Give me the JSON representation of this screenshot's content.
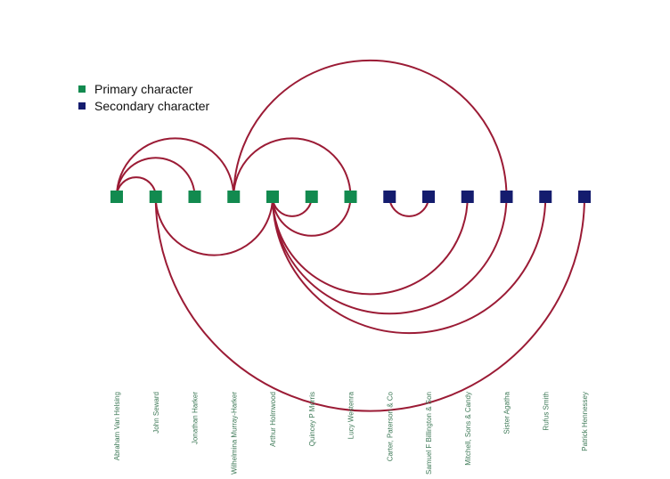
{
  "legend": {
    "items": [
      {
        "label": "Primary character",
        "color": "#128a4f"
      },
      {
        "label": "Secondary character",
        "color": "#141c6e"
      }
    ]
  },
  "arc_color": "#9b1b35",
  "label_color": "#3f7a58",
  "nodes": [
    {
      "id": "van-helsing",
      "label": "Abraham Van Helsing",
      "group": "primary"
    },
    {
      "id": "seward",
      "label": "John Seward",
      "group": "primary"
    },
    {
      "id": "harker",
      "label": "Jonathan Harker",
      "group": "primary"
    },
    {
      "id": "mina",
      "label": "Wilhelmina Murray-Harker",
      "group": "primary"
    },
    {
      "id": "holmwood",
      "label": "Arthur Holmwood",
      "group": "primary"
    },
    {
      "id": "morris",
      "label": "Quincey P Morris",
      "group": "primary"
    },
    {
      "id": "lucy",
      "label": "Lucy Westenra",
      "group": "primary"
    },
    {
      "id": "carter",
      "label": "Carter, Paterson & Co",
      "group": "secondary"
    },
    {
      "id": "billington",
      "label": "Samuel F Billington & Son",
      "group": "secondary"
    },
    {
      "id": "mitchell",
      "label": "Mitchell, Sons & Candy",
      "group": "secondary"
    },
    {
      "id": "agatha",
      "label": "Sister Agatha",
      "group": "secondary"
    },
    {
      "id": "rufus",
      "label": "Rufus Smith",
      "group": "secondary"
    },
    {
      "id": "hennessey",
      "label": "Patrick Hennessey",
      "group": "secondary"
    }
  ],
  "links": [
    {
      "source": "van-helsing",
      "target": "seward"
    },
    {
      "source": "van-helsing",
      "target": "harker"
    },
    {
      "source": "van-helsing",
      "target": "mina"
    },
    {
      "source": "mina",
      "target": "lucy"
    },
    {
      "source": "mina",
      "target": "agatha"
    },
    {
      "source": "seward",
      "target": "holmwood"
    },
    {
      "source": "seward",
      "target": "hennessey"
    },
    {
      "source": "holmwood",
      "target": "morris"
    },
    {
      "source": "holmwood",
      "target": "lucy"
    },
    {
      "source": "holmwood",
      "target": "mitchell"
    },
    {
      "source": "holmwood",
      "target": "rufus"
    },
    {
      "source": "holmwood",
      "target": "agatha"
    },
    {
      "source": "carter",
      "target": "billington"
    }
  ]
}
